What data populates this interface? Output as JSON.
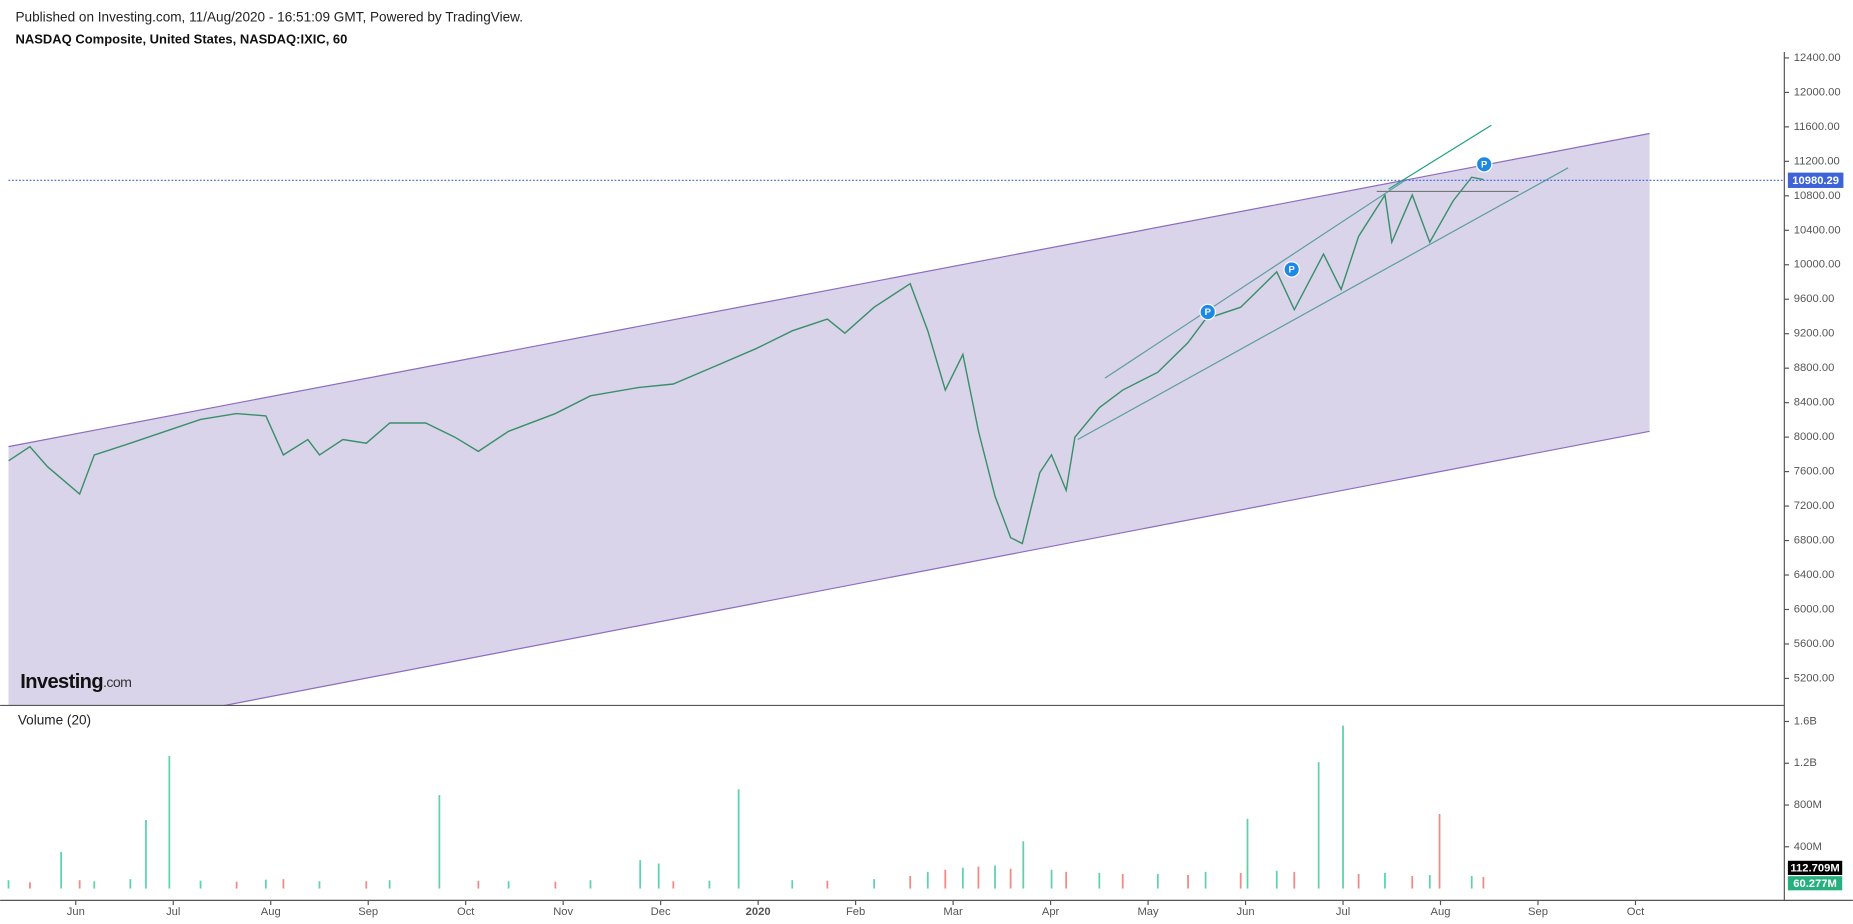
{
  "header": {
    "published": "Published on Investing.com, 11/Aug/2020 - 16:51:09 GMT, Powered by TradingView.",
    "symbol": "NASDAQ Composite, United States, NASDAQ:IXIC, 60"
  },
  "logo": {
    "name": "Investing",
    "suffix": ".com"
  },
  "chart_data": [
    {
      "type": "line",
      "color": "#3a8f6a",
      "x": [
        -0.69,
        -0.47,
        -0.29,
        0.04,
        0.19,
        0.56,
        0.92,
        1.28,
        1.65,
        1.95,
        2.13,
        2.38,
        2.5,
        2.74,
        2.98,
        3.22,
        3.59,
        3.89,
        4.13,
        4.44,
        4.92,
        5.28,
        5.77,
        6.13,
        6.5,
        6.98,
        7.35,
        7.71,
        7.89,
        8.19,
        8.56,
        8.74,
        8.92,
        9.1,
        9.26,
        9.43,
        9.59,
        9.71,
        9.89,
        10.01,
        10.16,
        10.25,
        10.5,
        10.74,
        11.1,
        11.41,
        11.59,
        11.95,
        12.32,
        12.5,
        12.8,
        12.98,
        13.16,
        13.43,
        13.5,
        13.71,
        13.89,
        14.13,
        14.32,
        14.44
      ],
      "values": [
        7725,
        7890,
        7656,
        7340,
        7794,
        7930,
        8068,
        8205,
        8273,
        8246,
        7794,
        7972,
        7794,
        7972,
        7930,
        8164,
        8164,
        7999,
        7835,
        8068,
        8273,
        8479,
        8575,
        8616,
        8794,
        9027,
        9233,
        9370,
        9206,
        9507,
        9781,
        9233,
        8547,
        8959,
        8068,
        7314,
        6834,
        6765,
        7588,
        7794,
        7382,
        7999,
        8342,
        8547,
        8753,
        9096,
        9370,
        9507,
        9918,
        9479,
        10124,
        9713,
        10330,
        10810,
        10261,
        10810,
        10261,
        10741,
        11015,
        10988
      ],
      "xlim": [
        -0.691,
        17.527
      ],
      "xticks": [
        {
          "value": 0,
          "label": "Jun"
        },
        {
          "value": 1,
          "label": "Jul"
        },
        {
          "value": 2,
          "label": "Aug"
        },
        {
          "value": 3,
          "label": "Sep"
        },
        {
          "value": 4,
          "label": "Oct"
        },
        {
          "value": 5,
          "label": "Nov"
        },
        {
          "value": 6,
          "label": "Dec"
        },
        {
          "value": 7,
          "label": "2020"
        },
        {
          "value": 8,
          "label": "Feb"
        },
        {
          "value": 9,
          "label": "Mar"
        },
        {
          "value": 10,
          "label": "Apr"
        },
        {
          "value": 11,
          "label": "May"
        },
        {
          "value": 12,
          "label": "Jun"
        },
        {
          "value": 13,
          "label": "Jul"
        },
        {
          "value": 14,
          "label": "Aug"
        },
        {
          "value": 15,
          "label": "Sep"
        },
        {
          "value": 16,
          "label": "Oct"
        }
      ],
      "ylim": [
        4887,
        12469
      ],
      "yticks": [
        {
          "value": 5200,
          "label": "5200.00"
        },
        {
          "value": 5600,
          "label": "5600.00"
        },
        {
          "value": 6000,
          "label": "6000.00"
        },
        {
          "value": 6400,
          "label": "6400.00"
        },
        {
          "value": 6800,
          "label": "6800.00"
        },
        {
          "value": 7200,
          "label": "7200.00"
        },
        {
          "value": 7600,
          "label": "7600.00"
        },
        {
          "value": 8000,
          "label": "8000.00"
        },
        {
          "value": 8400,
          "label": "8400.00"
        },
        {
          "value": 8800,
          "label": "8800.00"
        },
        {
          "value": 9200,
          "label": "9200.00"
        },
        {
          "value": 9600,
          "label": "9600.00"
        },
        {
          "value": 10000,
          "label": "10000.00"
        },
        {
          "value": 10400,
          "label": "10400.00"
        },
        {
          "value": 10800,
          "label": "10800.00"
        },
        {
          "value": 11200,
          "label": "11200.00"
        },
        {
          "value": 11600,
          "label": "11600.00"
        },
        {
          "value": 12000,
          "label": "12000.00"
        },
        {
          "value": 12400,
          "label": "12400.00"
        }
      ],
      "last_value": 10980.29,
      "last_value_color": "#3d63d6",
      "drawings": {
        "channel": {
          "fill": "#d9d4ea",
          "color": "#8e6bbf",
          "upper": {
            "x": [
              -0.691,
              16.145
            ],
            "y": [
              7890,
              11523
            ]
          },
          "lower": {
            "x": [
              -0.691,
              16.145
            ],
            "y": [
              4404,
              8068
            ]
          }
        },
        "lines": [
          {
            "color": "#5c9ca0",
            "x": [
              10.558,
              13.648
            ],
            "y": [
              8685,
              10988
            ]
          },
          {
            "color": "#5c9ca0",
            "x": [
              10.279,
              15.309
            ],
            "y": [
              7972,
              11125
            ]
          },
          {
            "color": "#1aa37a",
            "x": [
              13.467,
              14.521
            ],
            "y": [
              10878,
              11619
            ]
          },
          {
            "color": "#777777",
            "x": [
              13.345,
              14.8
            ],
            "y": [
              10851,
              10851
            ]
          }
        ],
        "markers": [
          {
            "label": "P",
            "color": "#1e88e5",
            "x": 11.612,
            "y": 9452
          },
          {
            "label": "P",
            "color": "#1e88e5",
            "x": 12.473,
            "y": 9946
          },
          {
            "label": "P",
            "color": "#1e88e5",
            "x": 14.448,
            "y": 11166
          }
        ]
      }
    },
    {
      "type": "bar",
      "title": "Volume (20)",
      "series": [
        {
          "color": "#5fd3a8",
          "x": [
            -0.69,
            -0.15,
            0.19,
            0.56,
            0.72,
            0.96,
            1.28,
            1.95,
            2.5,
            3.22,
            3.73,
            4.44,
            5.28,
            5.79,
            5.98,
            6.5,
            6.8,
            7.35,
            8.19,
            8.74,
            9.1,
            9.43,
            9.72,
            10.01,
            10.5,
            11.1,
            11.59,
            12.02,
            12.32,
            12.75,
            13.0,
            13.43,
            13.89,
            14.32
          ],
          "values": [
            80000000,
            351000000,
            70000000,
            90000000,
            657000000,
            1270000000,
            75000000,
            85000000,
            70000000,
            80000000,
            895000000,
            70000000,
            80000000,
            272000000,
            240000000,
            75000000,
            951000000,
            80000000,
            90000000,
            160000000,
            200000000,
            220000000,
            453000000,
            180000000,
            150000000,
            140000000,
            160000000,
            668000000,
            170000000,
            1210000000,
            1560000000,
            150000000,
            130000000,
            120000000
          ]
        },
        {
          "color": "#f08a86",
          "x": [
            -0.47,
            0.04,
            1.65,
            2.13,
            2.98,
            4.13,
            4.92,
            6.13,
            7.71,
            8.56,
            8.92,
            9.26,
            9.59,
            10.16,
            10.74,
            11.41,
            11.95,
            12.5,
            13.16,
            13.71,
            13.99,
            14.44
          ],
          "values": [
            60000000,
            80000000,
            65000000,
            90000000,
            70000000,
            75000000,
            65000000,
            70000000,
            75000000,
            120000000,
            180000000,
            210000000,
            190000000,
            160000000,
            140000000,
            130000000,
            150000000,
            160000000,
            140000000,
            120000000,
            714000000,
            110000000
          ]
        }
      ],
      "ylim": [
        0,
        1720000000
      ],
      "yticks": [
        {
          "value": 400000000,
          "label": "400M"
        },
        {
          "value": 800000000,
          "label": "800M"
        },
        {
          "value": 1200000000,
          "label": "1.2B"
        },
        {
          "value": 1600000000,
          "label": "1.6B"
        }
      ],
      "last_values": [
        {
          "value": 112709000,
          "label": "112.709M",
          "color": "#000000"
        },
        {
          "value": 60277000,
          "label": "60.277M",
          "color": "#26b07e"
        }
      ]
    }
  ]
}
